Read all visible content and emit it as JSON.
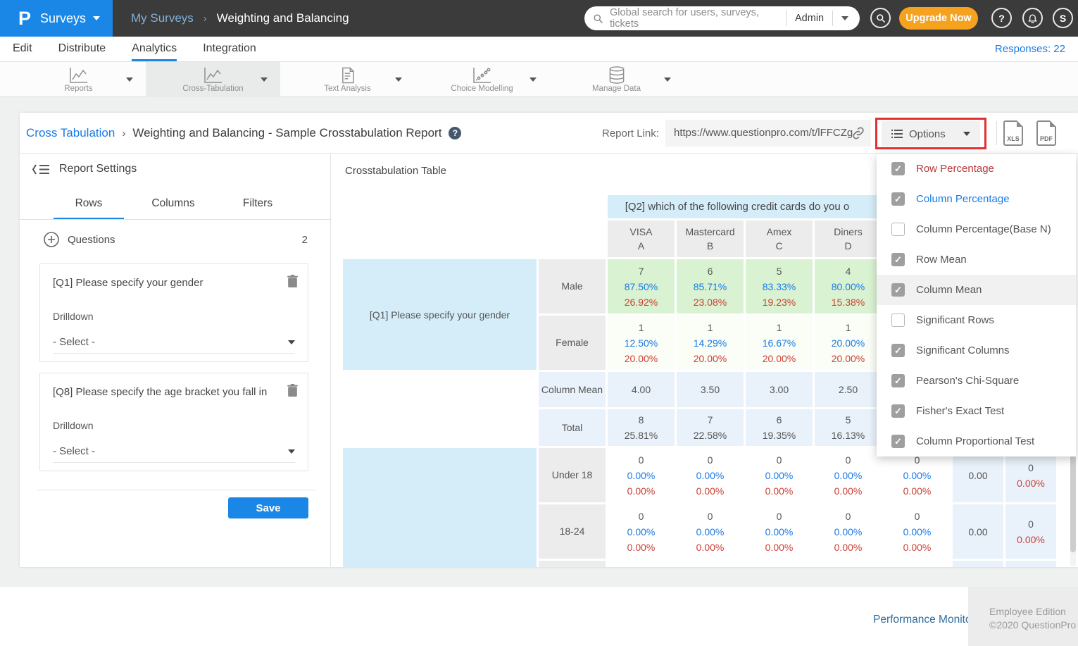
{
  "brand": {
    "logo_letter": "P",
    "product": "Surveys",
    "accent": "#1A87E6",
    "orange": "#F6A21E",
    "annotation_red": "#E23131"
  },
  "glyphs": {
    "question": "?",
    "check": "✓"
  },
  "topbar": {
    "crumb_parent": "My Surveys",
    "crumb_sep": "›",
    "crumb_current": "Weighting and Balancing",
    "search_placeholder": "Global search for users, surveys, tickets",
    "search_scope": "Admin",
    "upgrade_label": "Upgrade Now",
    "avatar_initial": "S"
  },
  "subnav": {
    "items": [
      "Edit",
      "Distribute",
      "Analytics",
      "Integration"
    ],
    "active": "Analytics",
    "responses": "Responses: 22"
  },
  "ribbon": {
    "items": [
      {
        "label": "Reports",
        "icon": "line-chart"
      },
      {
        "label": "Cross-Tabulation",
        "icon": "line-chart",
        "active": true
      },
      {
        "label": "Text Analysis",
        "icon": "document"
      },
      {
        "label": "Choice Modelling",
        "icon": "scatter"
      },
      {
        "label": "Manage Data",
        "icon": "database"
      }
    ]
  },
  "report_bar": {
    "crumb_link": "Cross Tabulation",
    "crumb_sep": "›",
    "title": "Weighting and Balancing - Sample Crosstabulation Report",
    "report_link_label": "Report Link:",
    "report_url": "https://www.questionpro.com/t/lFFCZg",
    "options_label": "Options",
    "xls_label": "XLS",
    "pdf_label": "PDF"
  },
  "settings": {
    "title": "Report Settings",
    "tabs": [
      "Rows",
      "Columns",
      "Filters"
    ],
    "active_tab": "Rows",
    "questions_label": "Questions",
    "questions_count": "2",
    "drilldown_label": "Drilldown",
    "select_placeholder": "- Select -",
    "cards": [
      {
        "question": "[Q1] Please specify your gender"
      },
      {
        "question": "[Q8] Please specify the age bracket you fall in"
      }
    ],
    "save_label": "Save"
  },
  "crosstab": {
    "title": "Crosstabulation Table",
    "question_header": "[Q2] which of the following credit cards do you o",
    "columns": [
      {
        "name": "VISA",
        "code": "A"
      },
      {
        "name": "Mastercard",
        "code": "B"
      },
      {
        "name": "Amex",
        "code": "C"
      },
      {
        "name": "Diners",
        "code": "D"
      },
      {
        "name": "",
        "code": ""
      }
    ],
    "group1": {
      "label": "[Q1] Please specify your gender",
      "rows": [
        {
          "label": "Male",
          "tone": "green",
          "cells": [
            [
              "7",
              "87.50%",
              "26.92%"
            ],
            [
              "6",
              "85.71%",
              "23.08%"
            ],
            [
              "5",
              "83.33%",
              "19.23%"
            ],
            [
              "4",
              "80.00%",
              "15.38%"
            ],
            null
          ]
        },
        {
          "label": "Female",
          "tone": "pale",
          "cells": [
            [
              "1",
              "12.50%",
              "20.00%"
            ],
            [
              "1",
              "14.29%",
              "20.00%"
            ],
            [
              "1",
              "16.67%",
              "20.00%"
            ],
            [
              "1",
              "20.00%",
              "20.00%"
            ],
            null
          ]
        }
      ],
      "column_mean": {
        "label": "Column Mean",
        "values": [
          "4.00",
          "3.50",
          "3.00",
          "2.50",
          null
        ]
      },
      "total": {
        "label": "Total",
        "values": [
          [
            "8",
            "25.81%"
          ],
          [
            "7",
            "22.58%"
          ],
          [
            "6",
            "19.35%"
          ],
          [
            "5",
            "16.13%"
          ],
          null
        ]
      }
    },
    "group2": {
      "label": "",
      "rows": [
        {
          "label": "Under 18",
          "tone": "white",
          "cells": [
            [
              "0",
              "0.00%",
              "0.00%"
            ],
            [
              "0",
              "0.00%",
              "0.00%"
            ],
            [
              "0",
              "0.00%",
              "0.00%"
            ],
            [
              "0",
              "0.00%",
              "0.00%"
            ],
            [
              "0",
              "0.00%",
              "0.00%"
            ]
          ],
          "row_mean": "0.00",
          "row_total": [
            "0",
            "0.00%"
          ]
        },
        {
          "label": "18-24",
          "tone": "white",
          "cells": [
            [
              "0",
              "0.00%",
              "0.00%"
            ],
            [
              "0",
              "0.00%",
              "0.00%"
            ],
            [
              "0",
              "0.00%",
              "0.00%"
            ],
            [
              "0",
              "0.00%",
              "0.00%"
            ],
            [
              "0",
              "0.00%",
              "0.00%"
            ]
          ],
          "row_mean": "0.00",
          "row_total": [
            "0",
            "0.00%"
          ]
        }
      ]
    },
    "text_colors": {
      "count": "#555555",
      "column_percentage": "#1A7BE6",
      "row_percentage": "#CC4036"
    }
  },
  "options_menu": {
    "items": [
      {
        "label": "Row Percentage",
        "checked": true,
        "color": "#B5373A"
      },
      {
        "label": "Column Percentage",
        "checked": true,
        "color": "#1A7BE6"
      },
      {
        "label": "Column Percentage(Base N)",
        "checked": false
      },
      {
        "label": "Row Mean",
        "checked": true
      },
      {
        "label": "Column Mean",
        "checked": true,
        "hover": true
      },
      {
        "label": "Significant Rows",
        "checked": false
      },
      {
        "label": "Significant Columns",
        "checked": true
      },
      {
        "label": "Pearson's Chi-Square",
        "checked": true
      },
      {
        "label": "Fisher's Exact Test",
        "checked": true
      },
      {
        "label": "Column Proportional Test",
        "checked": true
      }
    ]
  },
  "footer": {
    "link": "Performance Monitor",
    "edition_line1": "Employee Edition",
    "edition_line2": "©2020 QuestionPro"
  }
}
